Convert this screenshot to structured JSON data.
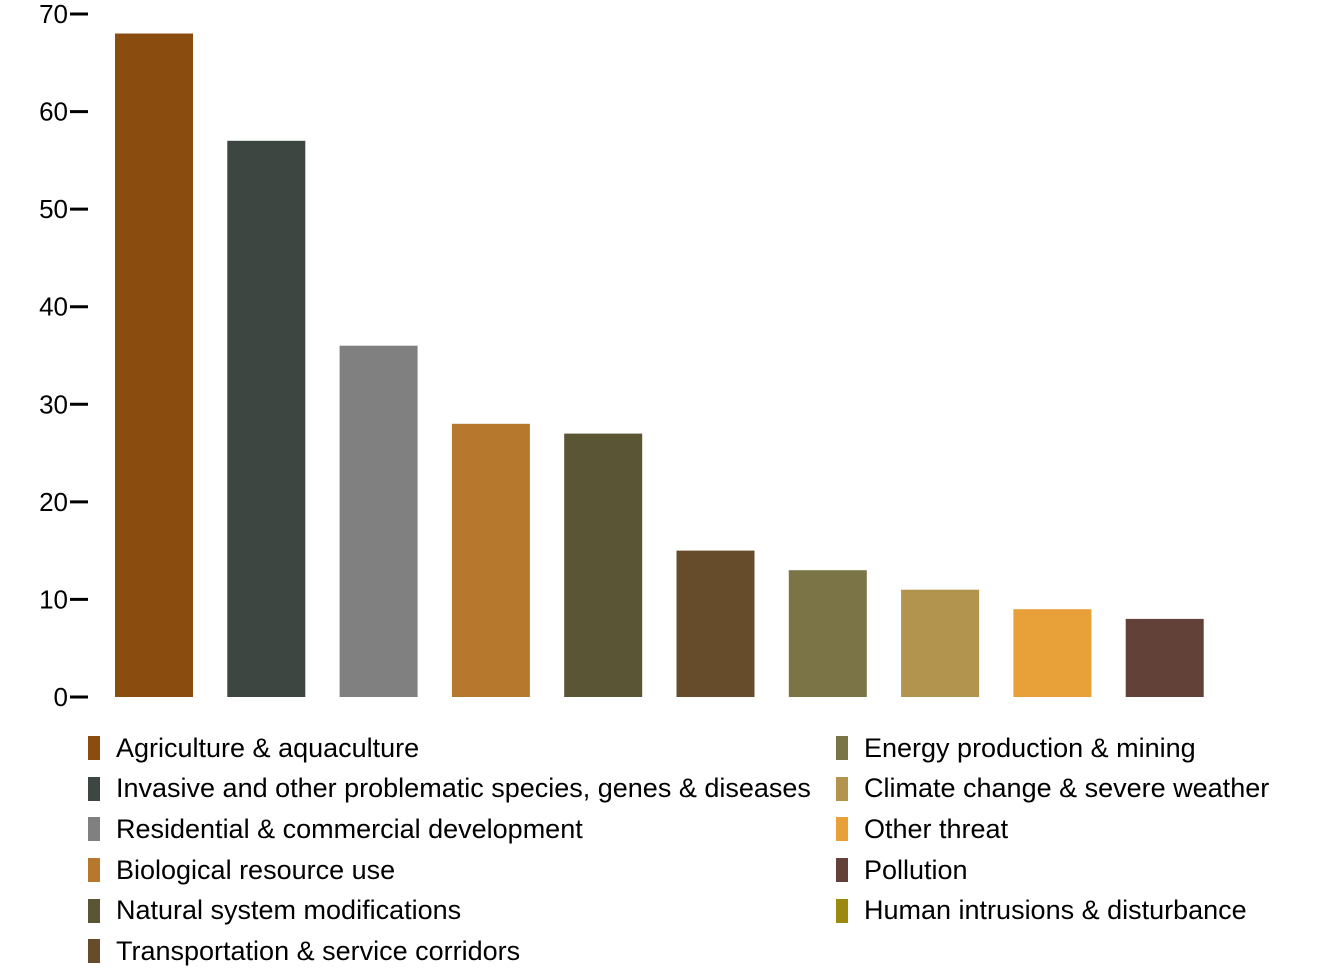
{
  "chart_data": {
    "type": "bar",
    "title": "",
    "xlabel": "",
    "ylabel": "",
    "ylim": [
      0,
      70
    ],
    "yticks": [
      0,
      10,
      20,
      30,
      40,
      50,
      60,
      70
    ],
    "grid": false,
    "legend_placement": "bottom",
    "categories": [
      "Agriculture & aquaculture",
      "Invasive and other problematic species, genes & diseases",
      "Residential & commercial development",
      "Biological resource use",
      "Natural system modifications",
      "Transportation & service corridors",
      "Energy production & mining",
      "Climate change & severe weather",
      "Other threat",
      "Pollution",
      "Human intrusions & disturbance"
    ],
    "values": [
      68,
      57,
      36,
      28,
      27,
      15,
      13,
      11,
      9,
      8,
      0
    ],
    "colors": [
      "#8b4c10",
      "#3d4640",
      "#808080",
      "#b5782c",
      "#5a5535",
      "#664c2a",
      "#7b7446",
      "#b3944f",
      "#e8a038",
      "#624238",
      "#9c8a10"
    ]
  },
  "legend": {
    "items": [
      {
        "label": "Agriculture & aquaculture",
        "color": "#8b4c10"
      },
      {
        "label": "Invasive and other problematic species, genes & diseases",
        "color": "#3d4640"
      },
      {
        "label": "Residential & commercial development",
        "color": "#808080"
      },
      {
        "label": "Biological resource use",
        "color": "#b5782c"
      },
      {
        "label": "Natural system modifications",
        "color": "#5a5535"
      },
      {
        "label": "Transportation & service corridors",
        "color": "#664c2a"
      },
      {
        "label": "Energy production & mining",
        "color": "#7b7446"
      },
      {
        "label": "Climate change & severe weather",
        "color": "#b3944f"
      },
      {
        "label": "Other threat",
        "color": "#e8a038"
      },
      {
        "label": "Pollution",
        "color": "#624238"
      },
      {
        "label": "Human intrusions & disturbance",
        "color": "#9c8a10"
      }
    ]
  }
}
